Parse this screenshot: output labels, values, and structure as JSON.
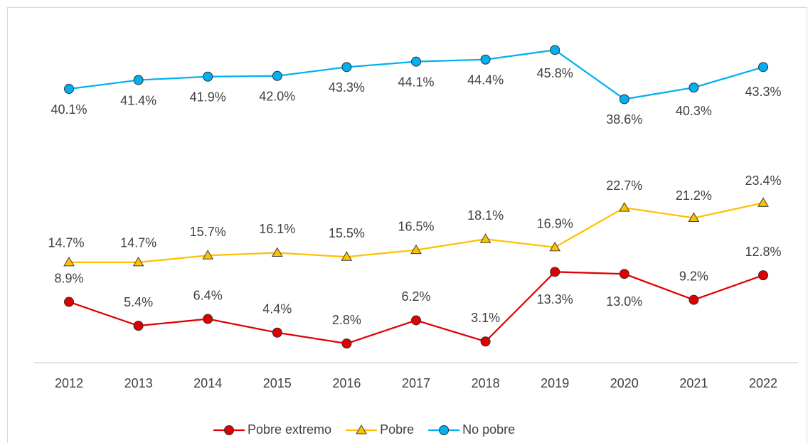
{
  "chart_data": {
    "type": "line",
    "categories": [
      "2012",
      "2013",
      "2014",
      "2015",
      "2016",
      "2017",
      "2018",
      "2019",
      "2020",
      "2021",
      "2022"
    ],
    "series": [
      {
        "name": "Pobre extremo",
        "color": "#e00000",
        "marker": "circle",
        "values": [
          8.9,
          5.4,
          6.4,
          4.4,
          2.8,
          6.2,
          3.1,
          13.3,
          13.0,
          9.2,
          12.8
        ],
        "value_labels": [
          "8.9%",
          "5.4%",
          "6.4%",
          "4.4%",
          "2.8%",
          "6.2%",
          "3.1%",
          "13.3%",
          "13.0%",
          "9.2%",
          "12.8%"
        ]
      },
      {
        "name": "Pobre",
        "color": "#ffc000",
        "marker": "triangle",
        "values": [
          14.7,
          14.7,
          15.7,
          16.1,
          15.5,
          16.5,
          18.1,
          16.9,
          22.7,
          21.2,
          23.4
        ],
        "value_labels": [
          "14.7%",
          "14.7%",
          "15.7%",
          "16.1%",
          "15.5%",
          "16.5%",
          "18.1%",
          "16.9%",
          "22.7%",
          "21.2%",
          "23.4%"
        ]
      },
      {
        "name": "No pobre",
        "color": "#00b0f0",
        "marker": "circle",
        "values": [
          40.1,
          41.4,
          41.9,
          42.0,
          43.3,
          44.1,
          44.4,
          45.8,
          38.6,
          40.3,
          43.3
        ],
        "value_labels": [
          "40.1%",
          "41.4%",
          "41.9%",
          "42.0%",
          "43.3%",
          "44.1%",
          "44.4%",
          "45.8%",
          "38.6%",
          "40.3%",
          "43.3%"
        ]
      }
    ],
    "ylim": [
      0,
      50
    ],
    "legend": "bottom"
  }
}
